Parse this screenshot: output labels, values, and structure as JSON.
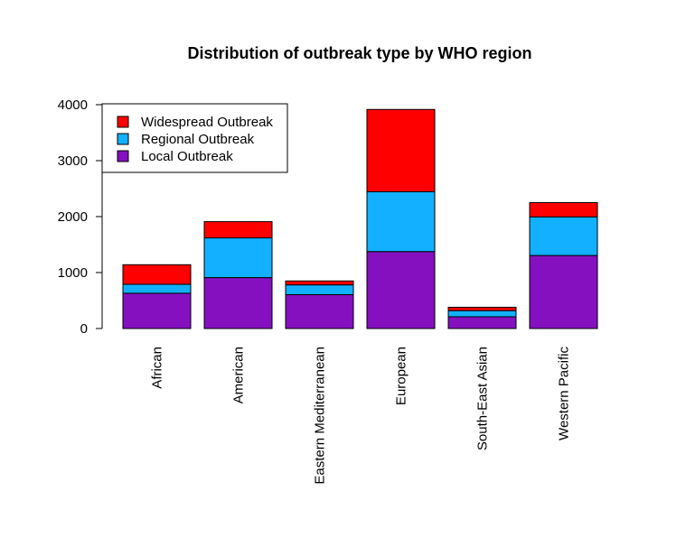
{
  "chart_data": {
    "type": "bar",
    "stacked": true,
    "title": "Distribution of outbreak type by WHO region",
    "xlabel": "",
    "ylabel": "",
    "categories": [
      "African",
      "American",
      "Eastern Mediterranean",
      "European",
      "South-East Asian",
      "Western Pacific"
    ],
    "series": [
      {
        "name": "Local Outbreak",
        "color": "#8510c0",
        "values": [
          630,
          910,
          605,
          1375,
          210,
          1305
        ]
      },
      {
        "name": "Regional Outbreak",
        "color": "#12b0ff",
        "values": [
          160,
          710,
          175,
          1070,
          110,
          690
        ]
      },
      {
        "name": "Widespread Outbreak",
        "color": "#ff0000",
        "values": [
          350,
          290,
          70,
          1470,
          60,
          255
        ]
      }
    ],
    "ylim": [
      0,
      4000
    ],
    "yticks": [
      0,
      1000,
      2000,
      3000,
      4000
    ],
    "legend": {
      "position": "top-left",
      "entries": [
        "Widespread Outbreak",
        "Regional Outbreak",
        "Local Outbreak"
      ]
    },
    "grid": false
  }
}
